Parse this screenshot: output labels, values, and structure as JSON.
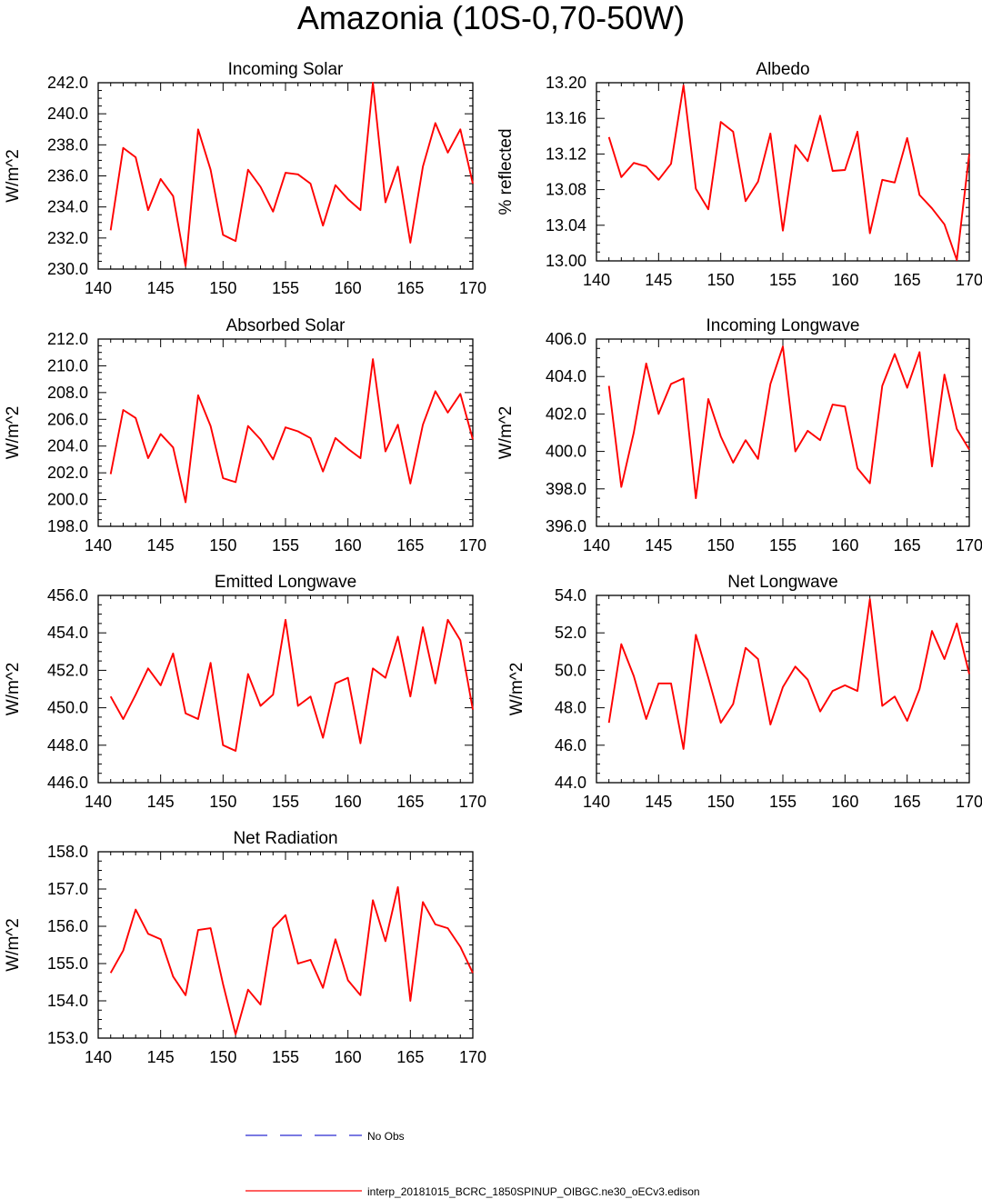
{
  "figure_title": "Amazonia (10S-0,70-50W)",
  "legend": [
    {
      "label": "No Obs",
      "color": "#2a2ad0",
      "style": "dashed"
    },
    {
      "label": "interp_20181015_BCRC_1850SPINUP_OIBGC.ne30_oECv3.edison",
      "color": "#ff0000",
      "style": "solid"
    }
  ],
  "chart_data": [
    {
      "type": "line",
      "title": "Incoming Solar",
      "ylabel": "W/m^2",
      "xlim": [
        140,
        170
      ],
      "xticks": [
        140,
        145,
        150,
        155,
        160,
        165,
        170
      ],
      "ylim": [
        230,
        242
      ],
      "yticks": [
        230,
        232,
        234,
        236,
        238,
        240,
        242
      ],
      "ydecimals": 1,
      "series": [
        {
          "name": "interp_20181015_BCRC_1850SPINUP_OIBGC.ne30_oECv3.edison",
          "color": "#ff0000",
          "x": [
            141,
            142,
            143,
            144,
            145,
            146,
            147,
            148,
            149,
            150,
            151,
            152,
            153,
            154,
            155,
            156,
            157,
            158,
            159,
            160,
            161,
            162,
            163,
            164,
            165,
            166,
            167,
            168,
            169,
            170
          ],
          "values": [
            232.5,
            237.8,
            237.2,
            233.8,
            235.8,
            234.7,
            230.2,
            239.0,
            236.4,
            232.2,
            231.8,
            236.4,
            235.3,
            233.7,
            236.2,
            236.1,
            235.5,
            232.8,
            235.4,
            234.5,
            233.8,
            242.0,
            234.3,
            236.6,
            231.7,
            236.6,
            239.4,
            237.5,
            239.0,
            235.5
          ]
        }
      ]
    },
    {
      "type": "line",
      "title": "Albedo",
      "ylabel": "% reflected",
      "xlim": [
        140,
        170
      ],
      "xticks": [
        140,
        145,
        150,
        155,
        160,
        165,
        170
      ],
      "ylim": [
        13.0,
        13.2
      ],
      "yticks": [
        13.0,
        13.04,
        13.08,
        13.12,
        13.16,
        13.2
      ],
      "ydecimals": 2,
      "series": [
        {
          "name": "interp_20181015_BCRC_1850SPINUP_OIBGC.ne30_oECv3.edison",
          "color": "#ff0000",
          "x": [
            141,
            142,
            143,
            144,
            145,
            146,
            147,
            148,
            149,
            150,
            151,
            152,
            153,
            154,
            155,
            156,
            157,
            158,
            159,
            160,
            161,
            162,
            163,
            164,
            165,
            166,
            167,
            168,
            169,
            170
          ],
          "values": [
            13.139,
            13.094,
            13.11,
            13.106,
            13.091,
            13.109,
            13.197,
            13.081,
            13.058,
            13.156,
            13.145,
            13.067,
            13.089,
            13.143,
            13.034,
            13.13,
            13.112,
            13.163,
            13.101,
            13.102,
            13.145,
            13.031,
            13.091,
            13.088,
            13.138,
            13.074,
            13.059,
            13.041,
            13.001,
            13.12
          ]
        }
      ]
    },
    {
      "type": "line",
      "title": "Absorbed Solar",
      "ylabel": "W/m^2",
      "xlim": [
        140,
        170
      ],
      "xticks": [
        140,
        145,
        150,
        155,
        160,
        165,
        170
      ],
      "ylim": [
        198,
        212
      ],
      "yticks": [
        198,
        200,
        202,
        204,
        206,
        208,
        210,
        212
      ],
      "ydecimals": 1,
      "series": [
        {
          "name": "interp_20181015_BCRC_1850SPINUP_OIBGC.ne30_oECv3.edison",
          "color": "#ff0000",
          "x": [
            141,
            142,
            143,
            144,
            145,
            146,
            147,
            148,
            149,
            150,
            151,
            152,
            153,
            154,
            155,
            156,
            157,
            158,
            159,
            160,
            161,
            162,
            163,
            164,
            165,
            166,
            167,
            168,
            169,
            170
          ],
          "values": [
            201.9,
            206.7,
            206.1,
            203.1,
            204.9,
            203.9,
            199.8,
            207.8,
            205.5,
            201.6,
            201.3,
            205.5,
            204.5,
            203.0,
            205.4,
            205.1,
            204.6,
            202.1,
            204.6,
            203.8,
            203.1,
            210.5,
            203.6,
            205.6,
            201.2,
            205.6,
            208.1,
            206.5,
            207.9,
            204.5
          ]
        }
      ]
    },
    {
      "type": "line",
      "title": "Incoming Longwave",
      "ylabel": "W/m^2",
      "xlim": [
        140,
        170
      ],
      "xticks": [
        140,
        145,
        150,
        155,
        160,
        165,
        170
      ],
      "ylim": [
        396,
        406
      ],
      "yticks": [
        396,
        398,
        400,
        402,
        404,
        406
      ],
      "ydecimals": 1,
      "series": [
        {
          "name": "interp_20181015_BCRC_1850SPINUP_OIBGC.ne30_oECv3.edison",
          "color": "#ff0000",
          "x": [
            141,
            142,
            143,
            144,
            145,
            146,
            147,
            148,
            149,
            150,
            151,
            152,
            153,
            154,
            155,
            156,
            157,
            158,
            159,
            160,
            161,
            162,
            163,
            164,
            165,
            166,
            167,
            168,
            169,
            170
          ],
          "values": [
            403.5,
            398.1,
            401.0,
            404.7,
            402.0,
            403.6,
            403.9,
            397.5,
            402.8,
            400.8,
            399.4,
            400.6,
            399.6,
            403.6,
            405.6,
            400.0,
            401.1,
            400.6,
            402.5,
            402.4,
            399.1,
            398.3,
            403.5,
            405.2,
            403.4,
            405.3,
            399.2,
            404.1,
            401.2,
            400.1
          ]
        }
      ]
    },
    {
      "type": "line",
      "title": "Emitted Longwave",
      "ylabel": "W/m^2",
      "xlim": [
        140,
        170
      ],
      "xticks": [
        140,
        145,
        150,
        155,
        160,
        165,
        170
      ],
      "ylim": [
        446,
        456
      ],
      "yticks": [
        446,
        448,
        450,
        452,
        454,
        456
      ],
      "ydecimals": 1,
      "series": [
        {
          "name": "interp_20181015_BCRC_1850SPINUP_OIBGC.ne30_oECv3.edison",
          "color": "#ff0000",
          "x": [
            141,
            142,
            143,
            144,
            145,
            146,
            147,
            148,
            149,
            150,
            151,
            152,
            153,
            154,
            155,
            156,
            157,
            158,
            159,
            160,
            161,
            162,
            163,
            164,
            165,
            166,
            167,
            168,
            169,
            170
          ],
          "values": [
            450.6,
            449.4,
            450.7,
            452.1,
            451.2,
            452.9,
            449.7,
            449.4,
            452.4,
            448.0,
            447.7,
            451.8,
            450.1,
            450.7,
            454.7,
            450.1,
            450.6,
            448.4,
            451.3,
            451.6,
            448.1,
            452.1,
            451.6,
            453.8,
            450.6,
            454.3,
            451.3,
            454.7,
            453.6,
            449.9
          ]
        }
      ]
    },
    {
      "type": "line",
      "title": "Net Longwave",
      "ylabel": "W/m^2",
      "xlim": [
        140,
        170
      ],
      "xticks": [
        140,
        145,
        150,
        155,
        160,
        165,
        170
      ],
      "ylim": [
        44,
        54
      ],
      "yticks": [
        44,
        46,
        48,
        50,
        52,
        54
      ],
      "ydecimals": 1,
      "series": [
        {
          "name": "interp_20181015_BCRC_1850SPINUP_OIBGC.ne30_oECv3.edison",
          "color": "#ff0000",
          "x": [
            141,
            142,
            143,
            144,
            145,
            146,
            147,
            148,
            149,
            150,
            151,
            152,
            153,
            154,
            155,
            156,
            157,
            158,
            159,
            160,
            161,
            162,
            163,
            164,
            165,
            166,
            167,
            168,
            169,
            170
          ],
          "values": [
            47.2,
            51.4,
            49.7,
            47.4,
            49.3,
            49.3,
            45.8,
            51.9,
            49.6,
            47.2,
            48.2,
            51.2,
            50.6,
            47.1,
            49.1,
            50.2,
            49.5,
            47.8,
            48.9,
            49.2,
            48.9,
            53.8,
            48.1,
            48.6,
            47.3,
            49.0,
            52.1,
            50.6,
            52.5,
            49.8
          ]
        }
      ]
    },
    {
      "type": "line",
      "title": "Net Radiation",
      "ylabel": "W/m^2",
      "xlim": [
        140,
        170
      ],
      "xticks": [
        140,
        145,
        150,
        155,
        160,
        165,
        170
      ],
      "ylim": [
        153,
        158
      ],
      "yticks": [
        153,
        154,
        155,
        156,
        157,
        158
      ],
      "ydecimals": 1,
      "series": [
        {
          "name": "interp_20181015_BCRC_1850SPINUP_OIBGC.ne30_oECv3.edison",
          "color": "#ff0000",
          "x": [
            141,
            142,
            143,
            144,
            145,
            146,
            147,
            148,
            149,
            150,
            151,
            152,
            153,
            154,
            155,
            156,
            157,
            158,
            159,
            160,
            161,
            162,
            163,
            164,
            165,
            166,
            167,
            168,
            169,
            170
          ],
          "values": [
            154.75,
            155.35,
            156.45,
            155.8,
            155.65,
            154.65,
            154.15,
            155.9,
            155.95,
            154.45,
            153.1,
            154.3,
            153.9,
            155.95,
            156.3,
            155.0,
            155.1,
            154.35,
            155.65,
            154.55,
            154.15,
            156.7,
            155.6,
            157.05,
            154.0,
            156.65,
            156.05,
            155.95,
            155.45,
            154.75
          ]
        }
      ]
    }
  ]
}
